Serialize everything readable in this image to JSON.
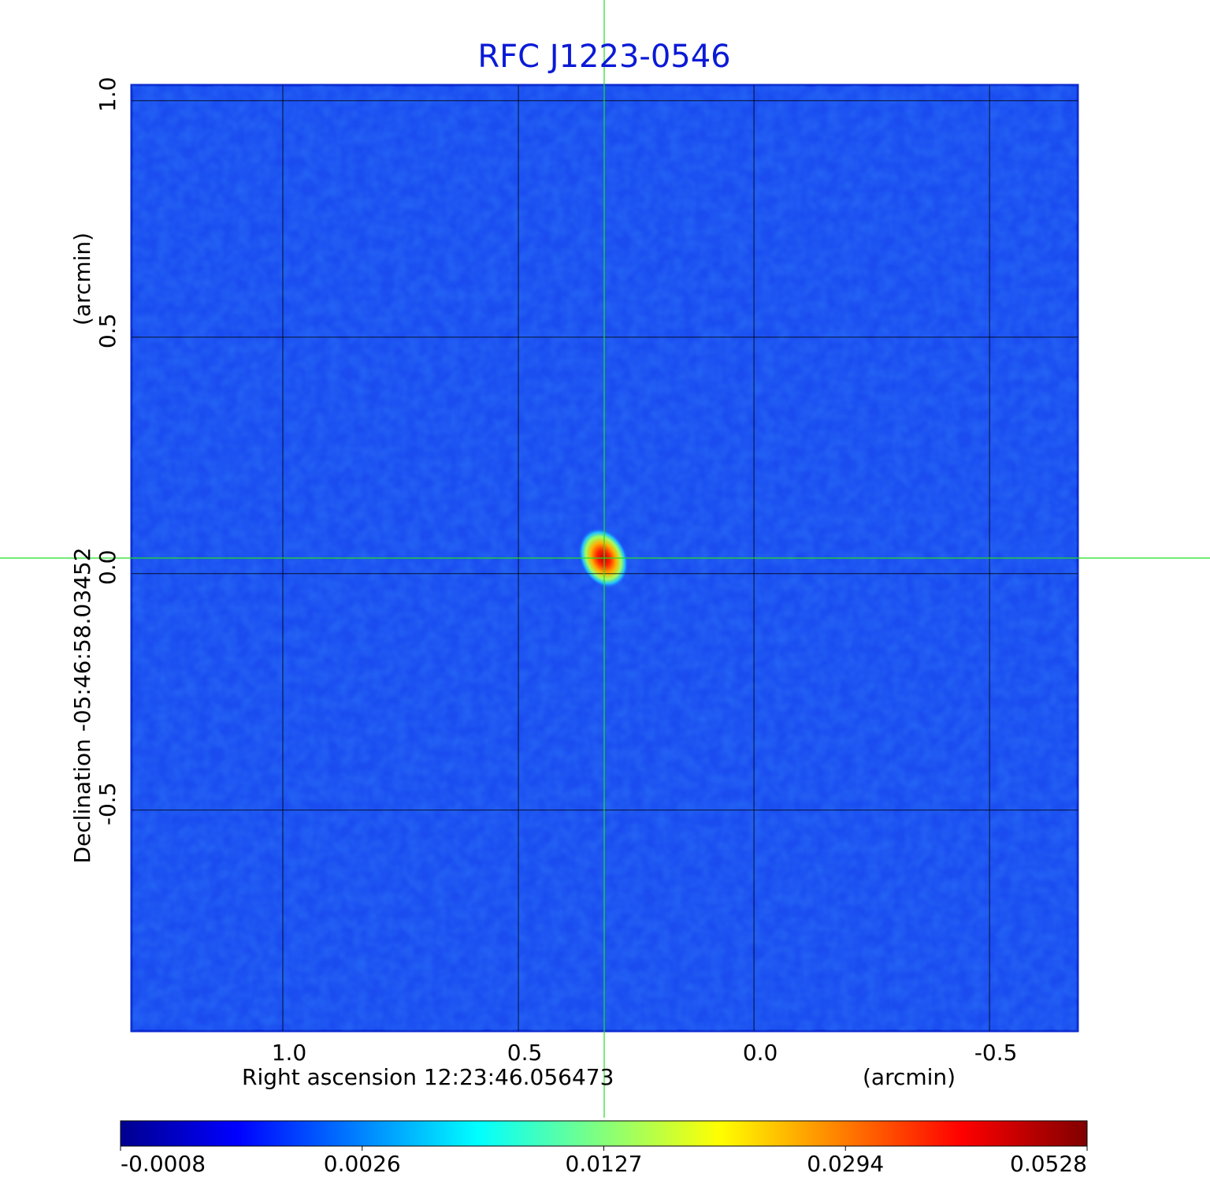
{
  "chart_data": {
    "type": "image",
    "title": "RFC J1223-0546",
    "x_label": "Right ascension  12:23:46.056473",
    "x_unit": "(arcmin)",
    "y_label": "Declination  -05:46:58.03452",
    "y_unit": "(arcmin)",
    "xlim": [
      1.321,
      -0.687
    ],
    "xticks": [
      {
        "value": 1,
        "label": "1.0"
      },
      0.5,
      {
        "value": 0,
        "label": "0.0"
      },
      -0.5
    ],
    "ylim": [
      -0.967,
      1.033
    ],
    "yticks": [
      {
        "value": 1,
        "label": "1.0"
      },
      0.5,
      {
        "value": 0,
        "label": "0.0"
      },
      -0.5
    ],
    "grid": true,
    "clim": [
      -0.0008,
      0.0528
    ],
    "cticks": [
      -0.0008,
      0.0026,
      0.0127,
      0.0294,
      0.0528
    ]
  }
}
